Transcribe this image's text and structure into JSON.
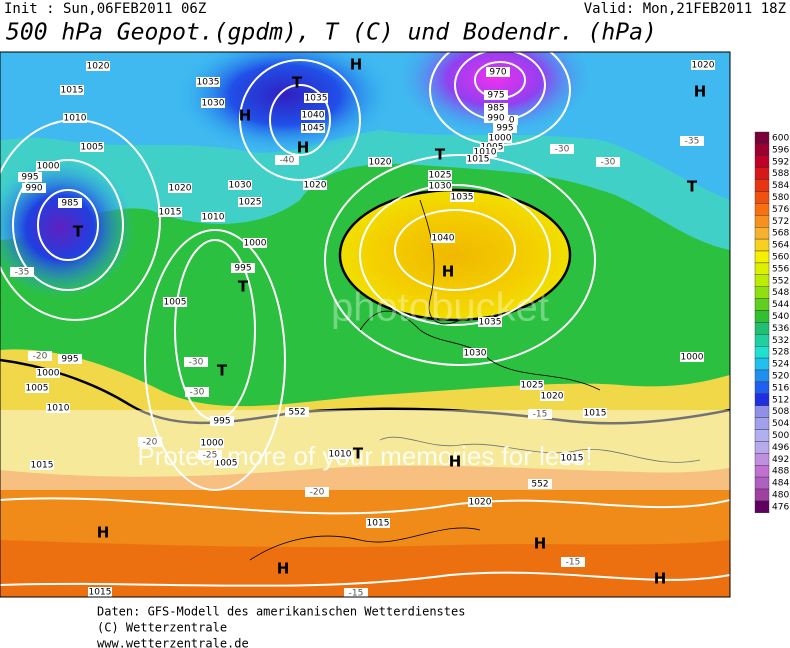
{
  "header": {
    "init": "Init : Sun,06FEB2011 06Z",
    "valid": "Valid: Mon,21FEB2011 18Z",
    "title": "500 hPa Geopot.(gpdm), T (C) und Bodendr. (hPa)"
  },
  "map": {
    "watermark": "Protect more of your memories for less!",
    "watermark_brand": "photobucket",
    "labels": [
      "1020",
      "1015",
      "1010",
      "1005",
      "1000",
      "995",
      "990",
      "985",
      "T",
      "-35",
      "1035",
      "1030",
      "H",
      "T",
      "1035",
      "1040",
      "1045",
      "H",
      "-40",
      "1030",
      "1025",
      "1020",
      "1020",
      "1015",
      "1010",
      "1000",
      "995",
      "T",
      "1005",
      "H",
      "975",
      "980",
      "985",
      "990",
      "995",
      "1000",
      "1005",
      "1010",
      "1015",
      "1020",
      "1025",
      "1030",
      "1035",
      "1040",
      "H",
      "T",
      "1035",
      "1030",
      "1025",
      "1020",
      "1015",
      "1000",
      "H",
      "T",
      "1020",
      "-35",
      "-30",
      "-30",
      "1010",
      "1005",
      "1000",
      "995",
      "-20",
      "T",
      "-30",
      "-30",
      "995",
      "1000",
      "1005",
      "-25",
      "1015",
      "H",
      "H",
      "H",
      "H",
      "1015",
      "1020",
      "-20",
      "-15",
      "-15",
      "1015",
      "1010",
      "T",
      "H",
      "1015",
      "-15",
      "-20",
      "552",
      "552",
      "970"
    ]
  },
  "colorbar": {
    "levels": [
      600,
      596,
      592,
      588,
      584,
      580,
      576,
      572,
      568,
      564,
      560,
      556,
      552,
      548,
      544,
      540,
      536,
      532,
      528,
      524,
      520,
      516,
      512,
      508,
      504,
      500,
      496,
      492,
      488,
      484,
      480,
      476
    ],
    "colors": [
      "#7a003a",
      "#9c0030",
      "#c00028",
      "#d81818",
      "#e83412",
      "#f05010",
      "#f87010",
      "#f89020",
      "#f8b030",
      "#f8d020",
      "#f4f000",
      "#dcf000",
      "#bcec00",
      "#90e010",
      "#60d020",
      "#30c030",
      "#20c070",
      "#20d0a0",
      "#20e0d0",
      "#20c0f0",
      "#2090f0",
      "#2060f0",
      "#2030e0",
      "#9090e8",
      "#a0a0ec",
      "#b0b0f0",
      "#b8a8ec",
      "#c090e0",
      "#c070d0",
      "#b060c0",
      "#a040a0",
      "#600060"
    ]
  },
  "footer": {
    "lines": [
      "Daten: GFS-Modell des amerikanischen Wetterdienstes",
      "(C) Wetterzentrale",
      "www.wetterzentrale.de"
    ]
  }
}
